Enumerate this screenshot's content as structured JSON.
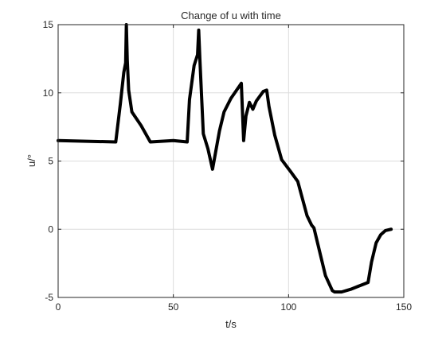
{
  "chart_data": {
    "type": "line",
    "title": "Change of u with time",
    "xlabel": "t/s",
    "ylabel": "u/°",
    "xlim": [
      0,
      150
    ],
    "ylim": [
      -5,
      15
    ],
    "xticks": [
      0,
      50,
      100,
      150
    ],
    "yticks": [
      -5,
      0,
      5,
      10,
      15
    ],
    "grid": true,
    "line_color": "#000000",
    "series": [
      {
        "x": [
          0,
          25,
          27,
          28.5,
          29.3,
          29.6,
          30,
          30.6,
          32,
          36,
          40,
          50,
          56,
          57,
          59,
          60.5,
          61,
          61.5,
          63,
          65,
          67,
          68.5,
          70,
          72,
          75,
          79.5,
          80.5,
          81.5,
          83,
          84.5,
          86,
          89,
          90.5,
          91.5,
          94,
          97,
          101,
          104,
          108,
          110,
          111,
          114,
          116,
          119,
          120,
          123,
          127,
          130,
          133,
          134.5,
          136,
          138,
          140,
          142,
          144.5
        ],
        "y": [
          6.5,
          6.4,
          9.2,
          11.5,
          12.2,
          15.0,
          12.4,
          10.2,
          8.6,
          7.6,
          6.4,
          6.5,
          6.4,
          9.5,
          12.0,
          12.8,
          14.6,
          12.5,
          7.0,
          5.9,
          4.4,
          5.8,
          7.2,
          8.6,
          9.6,
          10.7,
          6.5,
          8.3,
          9.3,
          8.8,
          9.4,
          10.1,
          10.2,
          9.0,
          6.9,
          5.1,
          4.2,
          3.5,
          1.0,
          0.3,
          0.1,
          -2.0,
          -3.4,
          -4.5,
          -4.6,
          -4.6,
          -4.4,
          -4.2,
          -4.0,
          -3.9,
          -2.4,
          -1.0,
          -0.4,
          -0.1,
          0.0
        ]
      }
    ]
  }
}
